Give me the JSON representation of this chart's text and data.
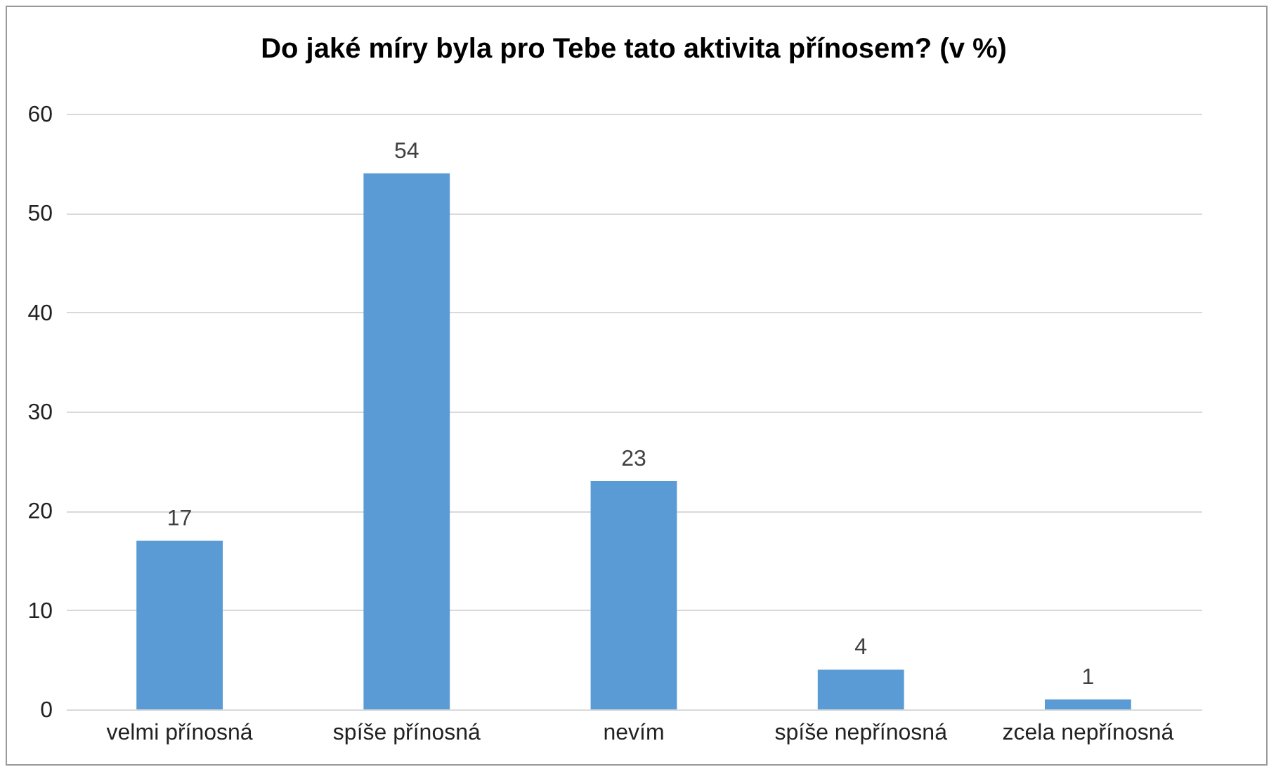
{
  "chart_data": {
    "type": "bar",
    "title": "Do jaké míry byla pro Tebe tato aktivita přínosem? (v %)",
    "categories": [
      "velmi přínosná",
      "spíše přínosná",
      "nevím",
      "spíše nepřínosná",
      "zcela nepřínosná"
    ],
    "values": [
      17,
      54,
      23,
      4,
      1
    ],
    "color": "#5b9bd5",
    "ylim": [
      0,
      60
    ],
    "yticks": [
      0,
      10,
      20,
      30,
      40,
      50,
      60
    ],
    "grid": "y",
    "data_labels": true
  }
}
